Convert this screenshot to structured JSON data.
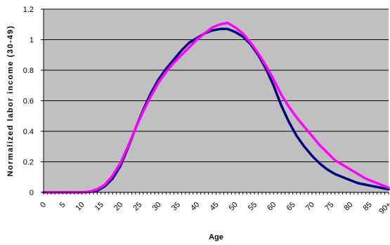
{
  "chart_data": {
    "type": "line",
    "title": "",
    "xlabel": "Age",
    "ylabel": "Normalized labor income (30-49)",
    "ylim": [
      0,
      1.2
    ],
    "yticks": [
      "0",
      "0.2",
      "0.4",
      "0.6",
      "0.8",
      "1",
      "1.2"
    ],
    "xticks": [
      "0",
      "5",
      "10",
      "15",
      "20",
      "25",
      "30",
      "35",
      "40",
      "45",
      "50",
      "55",
      "60",
      "65",
      "70",
      "75",
      "80",
      "85",
      "90+"
    ],
    "grid": "horizontal",
    "plot_background": "#C0C0C0",
    "x": [
      0,
      5,
      10,
      12,
      14,
      16,
      18,
      20,
      22,
      24,
      26,
      28,
      30,
      32,
      34,
      36,
      38,
      40,
      42,
      44,
      46,
      48,
      50,
      52,
      54,
      56,
      58,
      60,
      62,
      64,
      66,
      68,
      70,
      72,
      74,
      76,
      78,
      80,
      82,
      84,
      86,
      88,
      90
    ],
    "series": [
      {
        "color": "#000080",
        "values": [
          0,
          0,
          0,
          0.003,
          0.01,
          0.04,
          0.09,
          0.17,
          0.29,
          0.42,
          0.54,
          0.65,
          0.74,
          0.81,
          0.87,
          0.93,
          0.98,
          1.01,
          1.04,
          1.06,
          1.07,
          1.07,
          1.05,
          1.02,
          0.97,
          0.9,
          0.81,
          0.7,
          0.57,
          0.46,
          0.37,
          0.3,
          0.24,
          0.19,
          0.15,
          0.12,
          0.1,
          0.08,
          0.06,
          0.05,
          0.04,
          0.03,
          0.02
        ]
      },
      {
        "color": "#FF00FF",
        "values": [
          0,
          0,
          0,
          0.005,
          0.02,
          0.05,
          0.11,
          0.19,
          0.3,
          0.42,
          0.53,
          0.63,
          0.72,
          0.79,
          0.85,
          0.9,
          0.95,
          1.0,
          1.04,
          1.08,
          1.1,
          1.11,
          1.08,
          1.04,
          0.98,
          0.91,
          0.83,
          0.74,
          0.64,
          0.56,
          0.49,
          0.43,
          0.37,
          0.31,
          0.26,
          0.21,
          0.18,
          0.15,
          0.12,
          0.09,
          0.07,
          0.05,
          0.03
        ]
      }
    ]
  }
}
